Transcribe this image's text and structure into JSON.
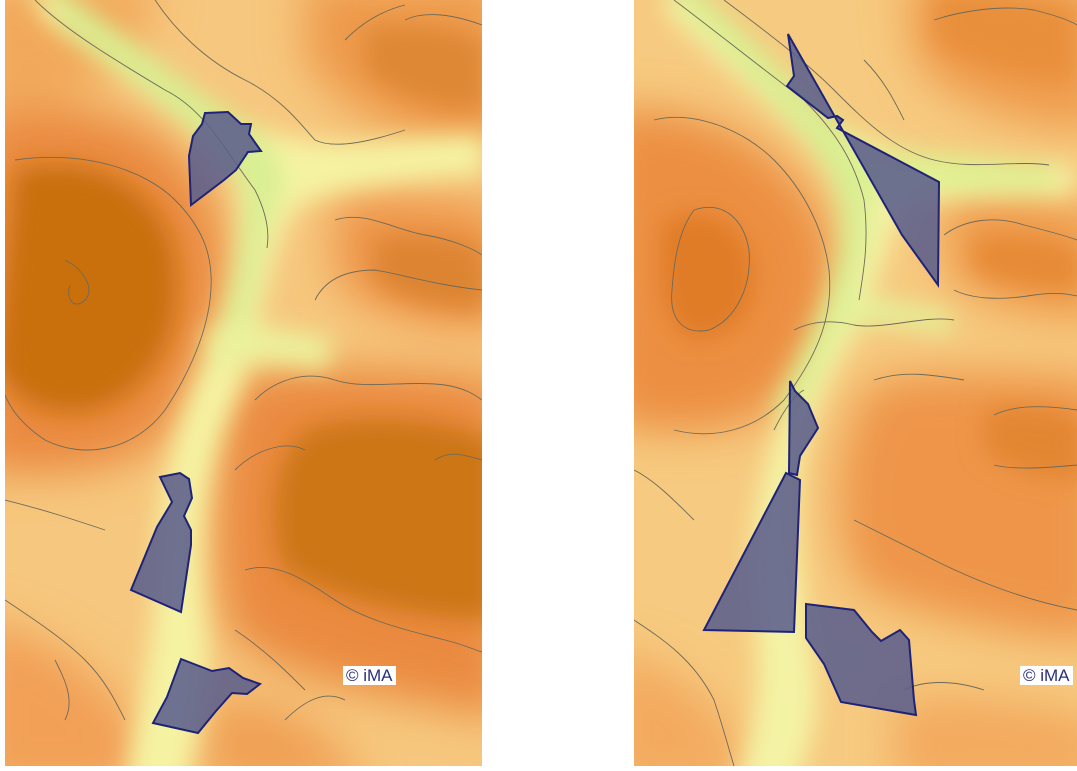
{
  "colors": {
    "low": "#d8ef92",
    "mid": "#f4f1a0",
    "high": "#f1a157",
    "peak": "#c9700d",
    "contour": "#6e6a58",
    "polygon_fill": "#5b5f8c",
    "polygon_stroke": "#1e2378",
    "copyright_text": "#2a2f7a"
  },
  "maps": [
    {
      "name": "left-map",
      "copyright": "© iMA",
      "polygon_count": 3
    },
    {
      "name": "right-map",
      "copyright": "© iMA",
      "polygon_count": 4
    }
  ]
}
